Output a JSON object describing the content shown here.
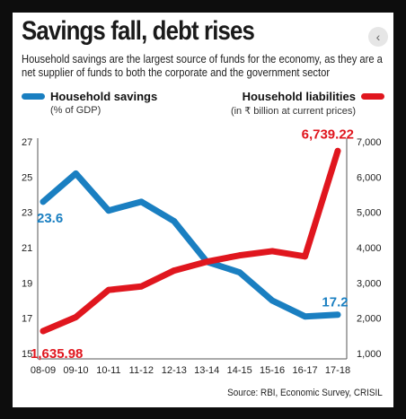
{
  "chart_data": {
    "type": "line",
    "title": "Savings fall, debt rises",
    "subtitle": "Household savings are the largest source of funds for the economy, as they are a net supplier of funds to both the corporate and the government sector",
    "categories": [
      "08-09",
      "09-10",
      "10-11",
      "11-12",
      "12-13",
      "13-14",
      "14-15",
      "15-16",
      "16-17",
      "17-18"
    ],
    "left_axis": {
      "ticks": [
        15,
        17,
        19,
        21,
        23,
        25,
        27
      ],
      "tick_labels": [
        "15",
        "17",
        "19",
        "21",
        "23",
        "25",
        "27"
      ],
      "ylim": [
        15,
        27
      ]
    },
    "right_axis": {
      "ticks": [
        1000,
        2000,
        3000,
        4000,
        5000,
        6000,
        7000
      ],
      "tick_labels": [
        "1,000",
        "2,000",
        "3,000",
        "4,000",
        "5,000",
        "6,000",
        "7,000"
      ],
      "ylim": [
        1000,
        7000
      ]
    },
    "series": [
      {
        "name": "Household savings",
        "unit": "(% of GDP)",
        "axis": "left",
        "color": "#1a7fc1",
        "values": [
          23.6,
          25.2,
          23.1,
          23.6,
          22.5,
          20.2,
          19.6,
          18.0,
          17.1,
          17.2
        ]
      },
      {
        "name": "Household liabilities",
        "unit": "(in ₹ billion at current prices)",
        "axis": "right",
        "color": "#e0161e",
        "values": [
          1635.98,
          2030,
          2800,
          2900,
          3350,
          3600,
          3780,
          3900,
          3750,
          6739.22
        ]
      }
    ],
    "annotations": [
      {
        "text": "23.6",
        "series": 0,
        "point": 0
      },
      {
        "text": "17.2",
        "series": 0,
        "point": 9
      },
      {
        "text": "1,635.98",
        "series": 1,
        "point": 0
      },
      {
        "text": "6,739.22",
        "series": 1,
        "point": 9
      }
    ],
    "grid": false,
    "legend": "top",
    "source": "Source: RBI, Economic Survey, CRISIL"
  },
  "ui": {
    "nav_glyph": "‹"
  }
}
